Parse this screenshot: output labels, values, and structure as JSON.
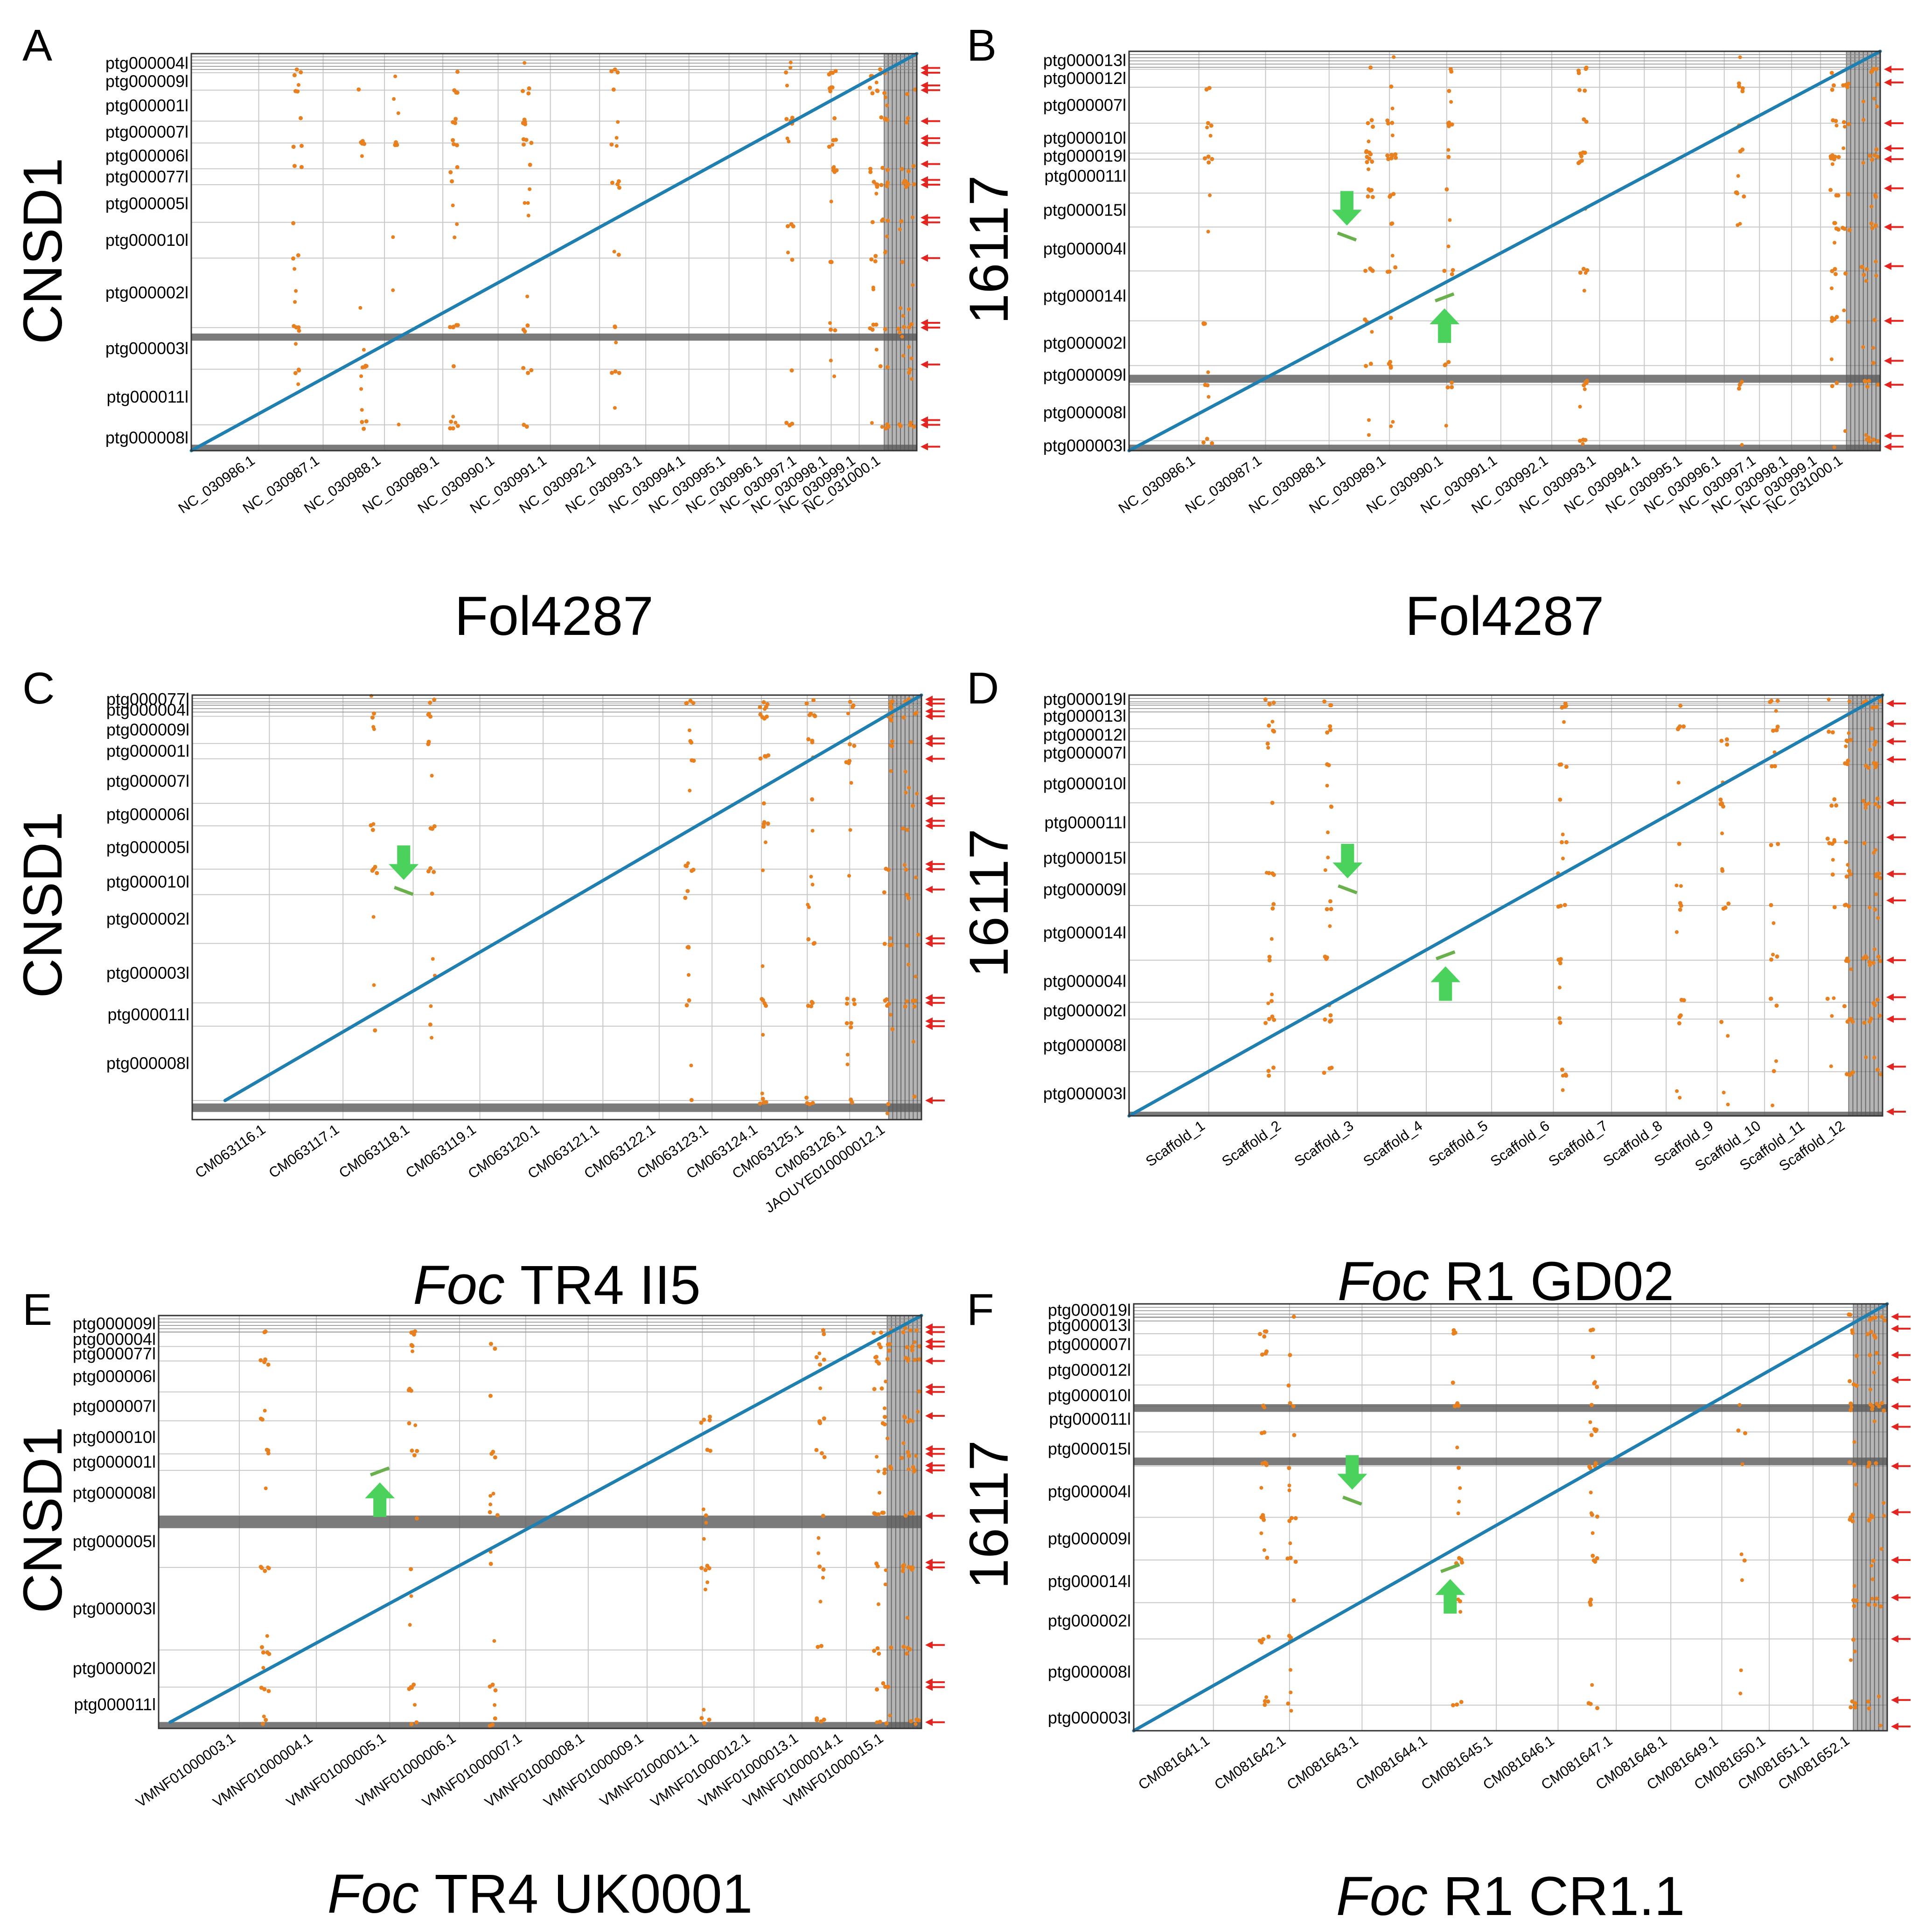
{
  "colors": {
    "alignment": "#1f7fb0",
    "repeat_dots": "#e8801f",
    "inversion": "#6ab04c",
    "arrow_red": "#e52420",
    "arrow_green": "#4bd25d",
    "grid": "#c8c8c8",
    "frame": "#333333",
    "dense_band": "#5a5a5a"
  },
  "chart_data": [
    {
      "type": "scatter",
      "panel_letter": "A",
      "ylabel": "CNSD1",
      "xlabel": "Fol4287",
      "x_italic_prefix": "",
      "x_categories": [
        "NC_030986.1",
        "NC_030987.1",
        "NC_030988.1",
        "NC_030989.1",
        "NC_030990.1",
        "NC_030991.1",
        "NC_030992.1",
        "NC_030993.1",
        "NC_030994.1",
        "NC_030995.1",
        "NC_030996.1",
        "NC_030997.1",
        "NC_030998.1",
        "NC_030999.1",
        "NC_031000.1"
      ],
      "y_categories": [
        "ptg000004l",
        "ptg000009l",
        "ptg000001l",
        "ptg000007l",
        "ptg000006l",
        "ptg000077l",
        "ptg000005l",
        "ptg000010l",
        "ptg000002l",
        "ptg000003l",
        "ptg000011l",
        "ptg000008l"
      ],
      "red_arrow_count": 19,
      "green_arrows": []
    },
    {
      "type": "scatter",
      "panel_letter": "B",
      "ylabel": "16117",
      "xlabel": "Fol4287",
      "x_italic_prefix": "",
      "x_categories": [
        "NC_030986.1",
        "NC_030987.1",
        "NC_030988.1",
        "NC_030989.1",
        "NC_030990.1",
        "NC_030991.1",
        "NC_030992.1",
        "NC_030993.1",
        "NC_030994.1",
        "NC_030995.1",
        "NC_030996.1",
        "NC_030997.1",
        "NC_030998.1",
        "NC_030999.1",
        "NC_031000.1"
      ],
      "y_categories": [
        "ptg000013l",
        "ptg000012l",
        "ptg000007l",
        "ptg000010l",
        "ptg000019l",
        "ptg000011l",
        "ptg000015l",
        "ptg000004l",
        "ptg000014l",
        "ptg000002l",
        "ptg000009l",
        "ptg000008l",
        "ptg000003l"
      ],
      "red_arrow_count": 13,
      "green_arrows": [
        "down",
        "up"
      ]
    },
    {
      "type": "scatter",
      "panel_letter": "C",
      "ylabel": "CNSD1",
      "xlabel": "TR4 II5",
      "x_italic_prefix": "Foc",
      "x_categories": [
        "CM063116.1",
        "CM063117.1",
        "CM063118.1",
        "CM063119.1",
        "CM063120.1",
        "CM063121.1",
        "CM063122.1",
        "CM063123.1",
        "CM063124.1",
        "CM063125.1",
        "CM063126.1",
        "JAOUYE010000012.1"
      ],
      "y_categories": [
        "ptg000077l",
        "ptg000004l",
        "ptg000009l",
        "ptg000001l",
        "ptg000007l",
        "ptg000006l",
        "ptg000005l",
        "ptg000010l",
        "ptg000002l",
        "ptg000003l",
        "ptg000011l",
        "ptg000008l"
      ],
      "red_arrow_count": 21,
      "green_arrows": [
        "down"
      ]
    },
    {
      "type": "scatter",
      "panel_letter": "D",
      "ylabel": "16117",
      "xlabel": "R1 GD02",
      "x_italic_prefix": "Foc",
      "x_categories": [
        "Scaffold_1",
        "Scaffold_2",
        "Scaffold_3",
        "Scaffold_4",
        "Scaffold_5",
        "Scaffold_6",
        "Scaffold_7",
        "Scaffold_8",
        "Scaffold_9",
        "Scaffold_10",
        "Scaffold_11",
        "Scaffold_12"
      ],
      "y_categories": [
        "ptg000019l",
        "ptg000013l",
        "ptg000012l",
        "ptg000007l",
        "ptg000010l",
        "ptg000011l",
        "ptg000015l",
        "ptg000009l",
        "ptg000014l",
        "ptg000004l",
        "ptg000002l",
        "ptg000008l",
        "ptg000003l"
      ],
      "red_arrow_count": 13,
      "green_arrows": [
        "down",
        "up"
      ]
    },
    {
      "type": "scatter",
      "panel_letter": "E",
      "ylabel": "CNSD1",
      "xlabel": "TR4 UK0001",
      "x_italic_prefix": "Foc",
      "x_categories": [
        "VMNF01000003.1",
        "VMNF01000004.1",
        "VMNF01000005.1",
        "VMNF01000006.1",
        "VMNF01000007.1",
        "VMNF01000008.1",
        "VMNF01000009.1",
        "VMNF01000011.1",
        "VMNF01000012.1",
        "VMNF01000013.1",
        "VMNF01000014.1",
        "VMNF01000015.1"
      ],
      "y_categories": [
        "ptg000009l",
        "ptg000004l",
        "ptg000077l",
        "ptg000006l",
        "ptg000007l",
        "ptg000010l",
        "ptg000001l",
        "ptg000008l",
        "ptg000005l",
        "ptg000003l",
        "ptg000002l",
        "ptg000011l"
      ],
      "red_arrow_count": 19,
      "green_arrows": [
        "up"
      ]
    },
    {
      "type": "scatter",
      "panel_letter": "F",
      "ylabel": "16117",
      "xlabel": "R1 CR1.1",
      "x_italic_prefix": "Foc",
      "x_categories": [
        "CM081641.1",
        "CM081642.1",
        "CM081643.1",
        "CM081644.1",
        "CM081645.1",
        "CM081646.1",
        "CM081647.1",
        "CM081648.1",
        "CM081649.1",
        "CM081650.1",
        "CM081651.1",
        "CM081652.1"
      ],
      "y_categories": [
        "ptg000019l",
        "ptg000013l",
        "ptg000007l",
        "ptg000012l",
        "ptg000010l",
        "ptg000011l",
        "ptg000015l",
        "ptg000004l",
        "ptg000009l",
        "ptg000014l",
        "ptg000002l",
        "ptg000008l",
        "ptg000003l"
      ],
      "red_arrow_count": 13,
      "green_arrows": [
        "down",
        "up"
      ]
    }
  ]
}
